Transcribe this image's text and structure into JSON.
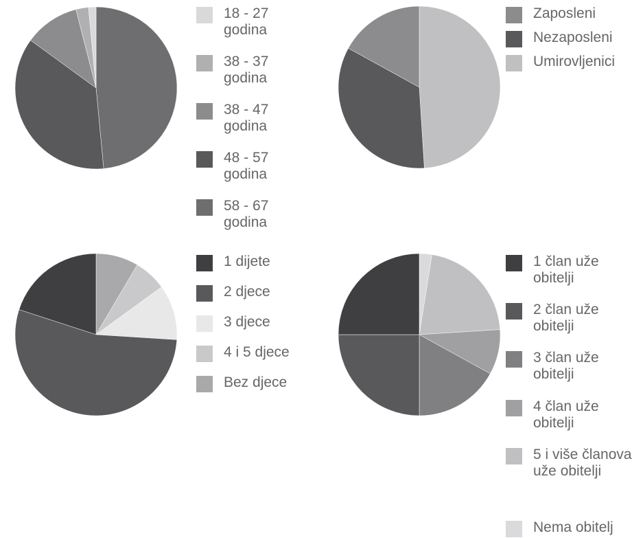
{
  "chart_data": [
    {
      "type": "pie",
      "legend_position": "right",
      "categories": [
        "18 - 27 godina",
        "38 - 37 godina",
        "38 - 47 godina",
        "48 - 57 godina",
        "58 - 67 godina"
      ],
      "values": [
        1.5,
        2.5,
        11,
        36.5,
        48.5
      ],
      "colors": [
        "#d9d9db",
        "#b0b0b2",
        "#8c8c8e",
        "#59595c",
        "#6e6e71"
      ],
      "slice_order": [
        4,
        3,
        2,
        1,
        0
      ],
      "start_angle": 0
    },
    {
      "type": "pie",
      "legend_position": "top-right",
      "categories": [
        "Zaposleni",
        "Nezaposleni",
        "Umirovljenici"
      ],
      "values": [
        17,
        34,
        49
      ],
      "colors": [
        "#8c8c8e",
        "#59595c",
        "#c0c0c2"
      ],
      "slice_order": [
        2,
        1,
        0
      ],
      "start_angle": 0
    },
    {
      "type": "pie",
      "legend_position": "right",
      "categories": [
        "1 dijete",
        "2 djece",
        "3 djece",
        "4 i 5 djece",
        "Bez djece"
      ],
      "values": [
        20,
        54,
        11,
        6.5,
        8.5
      ],
      "colors": [
        "#3f3f42",
        "#59595c",
        "#e8e8e9",
        "#c9c9cb",
        "#a9a9ab"
      ],
      "slice_order": [
        4,
        3,
        2,
        1,
        0
      ],
      "start_angle": 0
    },
    {
      "type": "pie",
      "legend_position": "right",
      "categories": [
        "1 član uže obitelji",
        "2 član uže obitelji",
        "3 član uže obitelji",
        "4 član uže obitelji",
        "5 i više članova uže obitelji",
        "Nema obitelj"
      ],
      "values": [
        25,
        25,
        17,
        9,
        21.5,
        2.5
      ],
      "colors": [
        "#3f3f42",
        "#59595c",
        "#808083",
        "#a0a0a2",
        "#c0c0c2",
        "#dadadc"
      ],
      "slice_order": [
        5,
        4,
        3,
        2,
        1,
        0
      ],
      "start_angle": 0
    }
  ]
}
